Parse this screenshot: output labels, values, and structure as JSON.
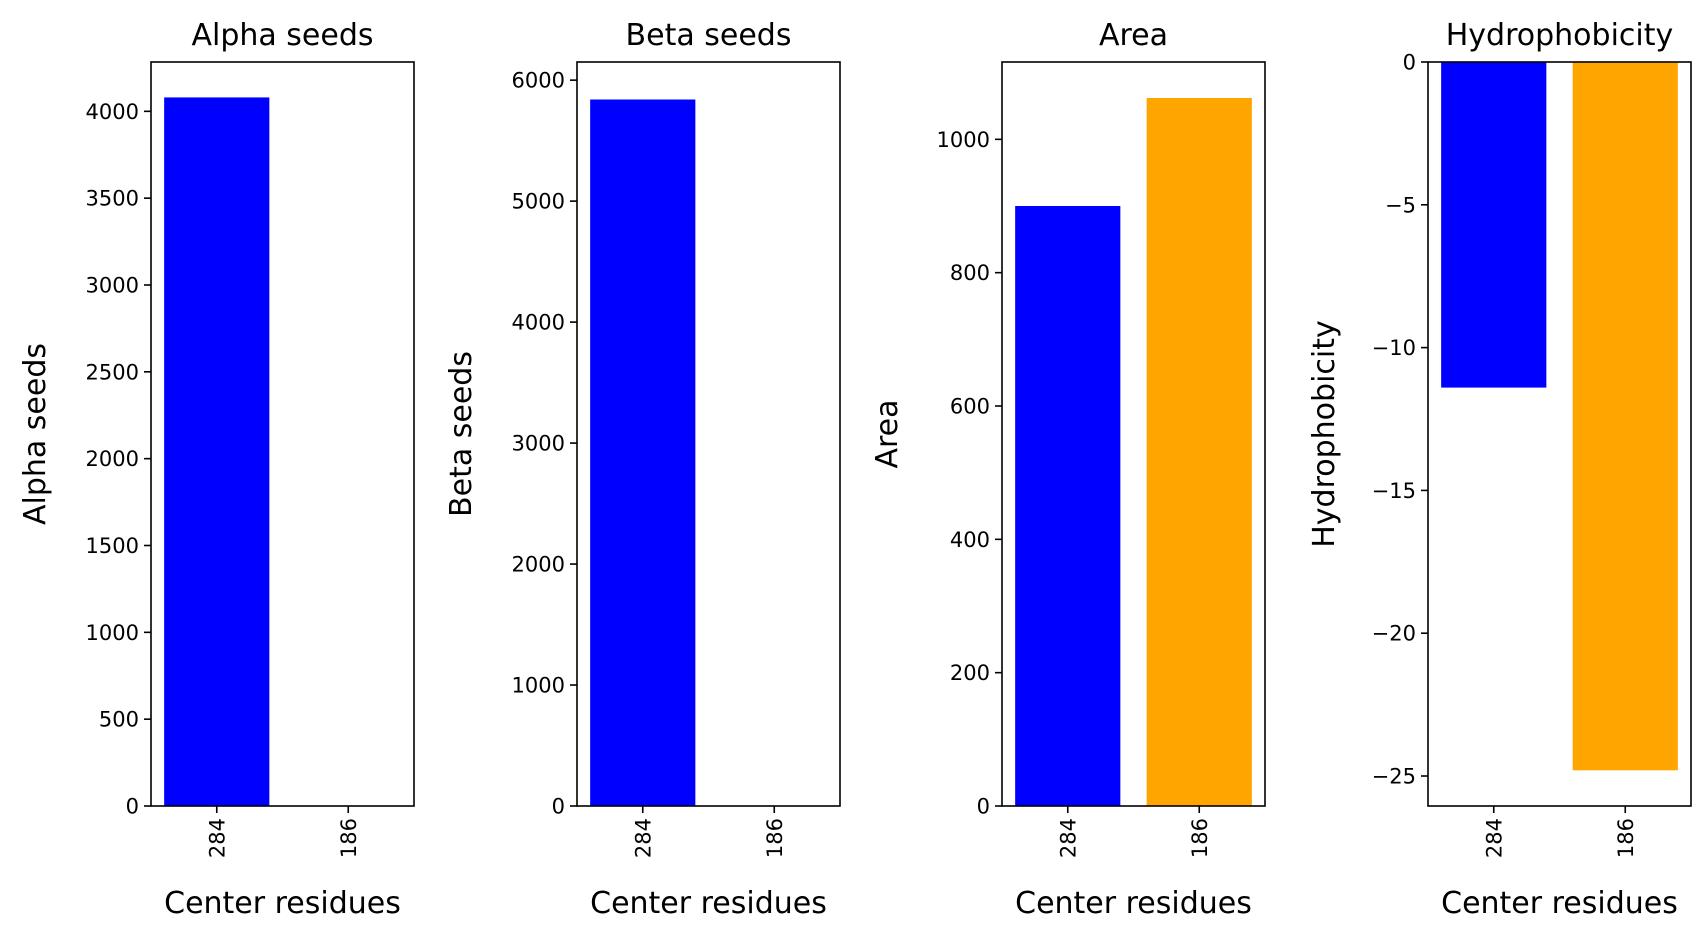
{
  "chart_data": [
    {
      "type": "bar",
      "title": "Alpha seeds",
      "xlabel": "Center residues",
      "ylabel": "Alpha seeds",
      "categories": [
        "284",
        "186"
      ],
      "series": [
        {
          "values": [
            4080,
            0
          ]
        }
      ],
      "bar_colors": [
        "#0000ff",
        "#ffa500"
      ],
      "ylim": [
        0,
        4284
      ],
      "yticks": [
        0,
        500,
        1000,
        1500,
        2000,
        2500,
        3000,
        3500,
        4000
      ],
      "ytick_labels": [
        "0",
        "500",
        "1000",
        "1500",
        "2000",
        "2500",
        "3000",
        "3500",
        "4000"
      ],
      "grid": false
    },
    {
      "type": "bar",
      "title": "Beta seeds",
      "xlabel": "Center residues",
      "ylabel": "Beta seeds",
      "categories": [
        "284",
        "186"
      ],
      "series": [
        {
          "values": [
            5840,
            0
          ]
        }
      ],
      "bar_colors": [
        "#0000ff",
        "#ffa500"
      ],
      "ylim": [
        0,
        6150
      ],
      "yticks": [
        0,
        1000,
        2000,
        3000,
        4000,
        5000,
        6000
      ],
      "ytick_labels": [
        "0",
        "1000",
        "2000",
        "3000",
        "4000",
        "5000",
        "6000"
      ],
      "grid": false
    },
    {
      "type": "bar",
      "title": "Area",
      "xlabel": "Center residues",
      "ylabel": "Area",
      "categories": [
        "284",
        "186"
      ],
      "series": [
        {
          "values": [
            900,
            1062
          ]
        }
      ],
      "bar_colors": [
        "#0000ff",
        "#ffa500"
      ],
      "ylim": [
        0,
        1116
      ],
      "yticks": [
        0,
        200,
        400,
        600,
        800,
        1000
      ],
      "ytick_labels": [
        "0",
        "200",
        "400",
        "600",
        "800",
        "1000"
      ],
      "grid": false
    },
    {
      "type": "bar",
      "title": "Hydrophobicity",
      "xlabel": "Center residues",
      "ylabel": "Hydrophobicity",
      "categories": [
        "284",
        "186"
      ],
      "series": [
        {
          "values": [
            -11.4,
            -24.8
          ]
        }
      ],
      "bar_colors": [
        "#0000ff",
        "#ffa500"
      ],
      "ylim": [
        -26.05,
        0
      ],
      "yticks": [
        0,
        -5,
        -10,
        -15,
        -20,
        -25
      ],
      "ytick_labels": [
        "0",
        "−5",
        "−10",
        "−15",
        "−20",
        "−25"
      ],
      "grid": false
    }
  ]
}
